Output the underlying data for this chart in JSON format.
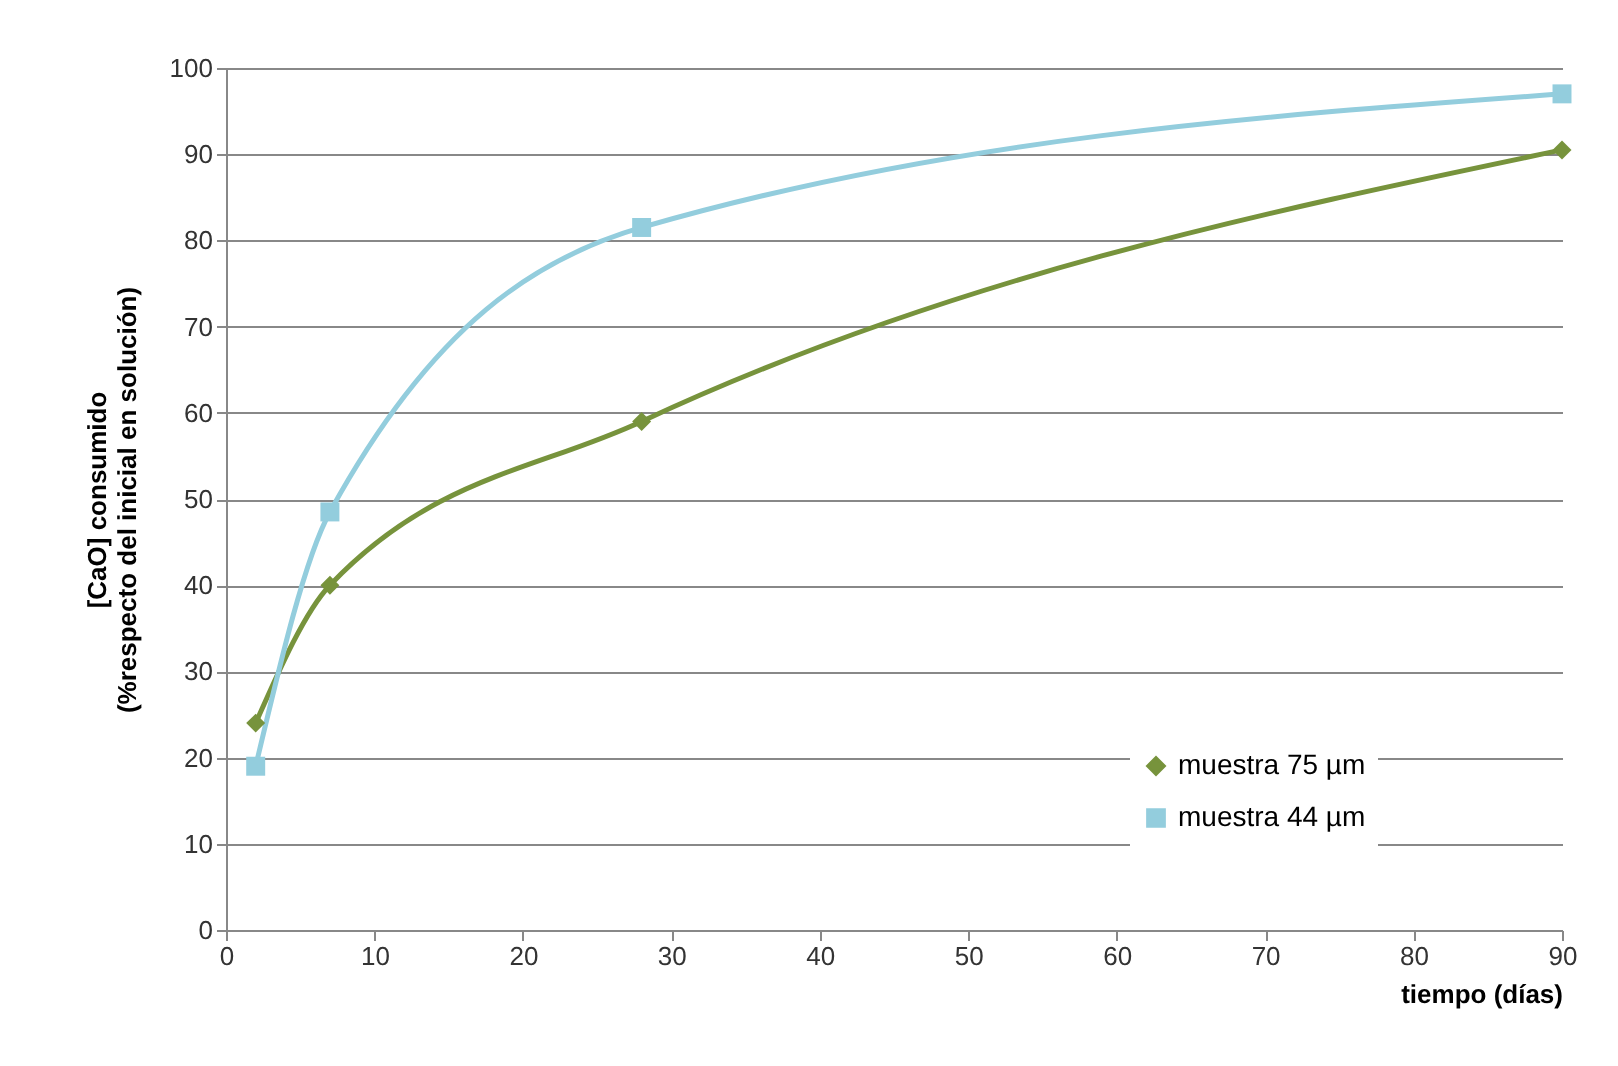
{
  "chart_data": {
    "type": "line",
    "xlabel": "tiempo (días)",
    "ylabel": "[CaO] consumido\n(%respecto del inicial en solución)",
    "x": [
      2,
      7,
      28,
      90
    ],
    "series": [
      {
        "name": "muestra 75 µm",
        "color": "#77933c",
        "marker": "diamond",
        "values": [
          24,
          40,
          59,
          90.5
        ]
      },
      {
        "name": "muestra 44 µm",
        "color": "#93cddd",
        "marker": "square",
        "values": [
          19,
          48.5,
          81.5,
          97
        ]
      }
    ],
    "xlim": [
      0,
      90
    ],
    "xticks": [
      0,
      10,
      20,
      30,
      40,
      50,
      60,
      70,
      80,
      90
    ],
    "ylim": [
      0,
      100
    ],
    "yticks": [
      0,
      10,
      20,
      30,
      40,
      50,
      60,
      70,
      80,
      90,
      100
    ],
    "grid": "y",
    "legend": "bottom right"
  }
}
